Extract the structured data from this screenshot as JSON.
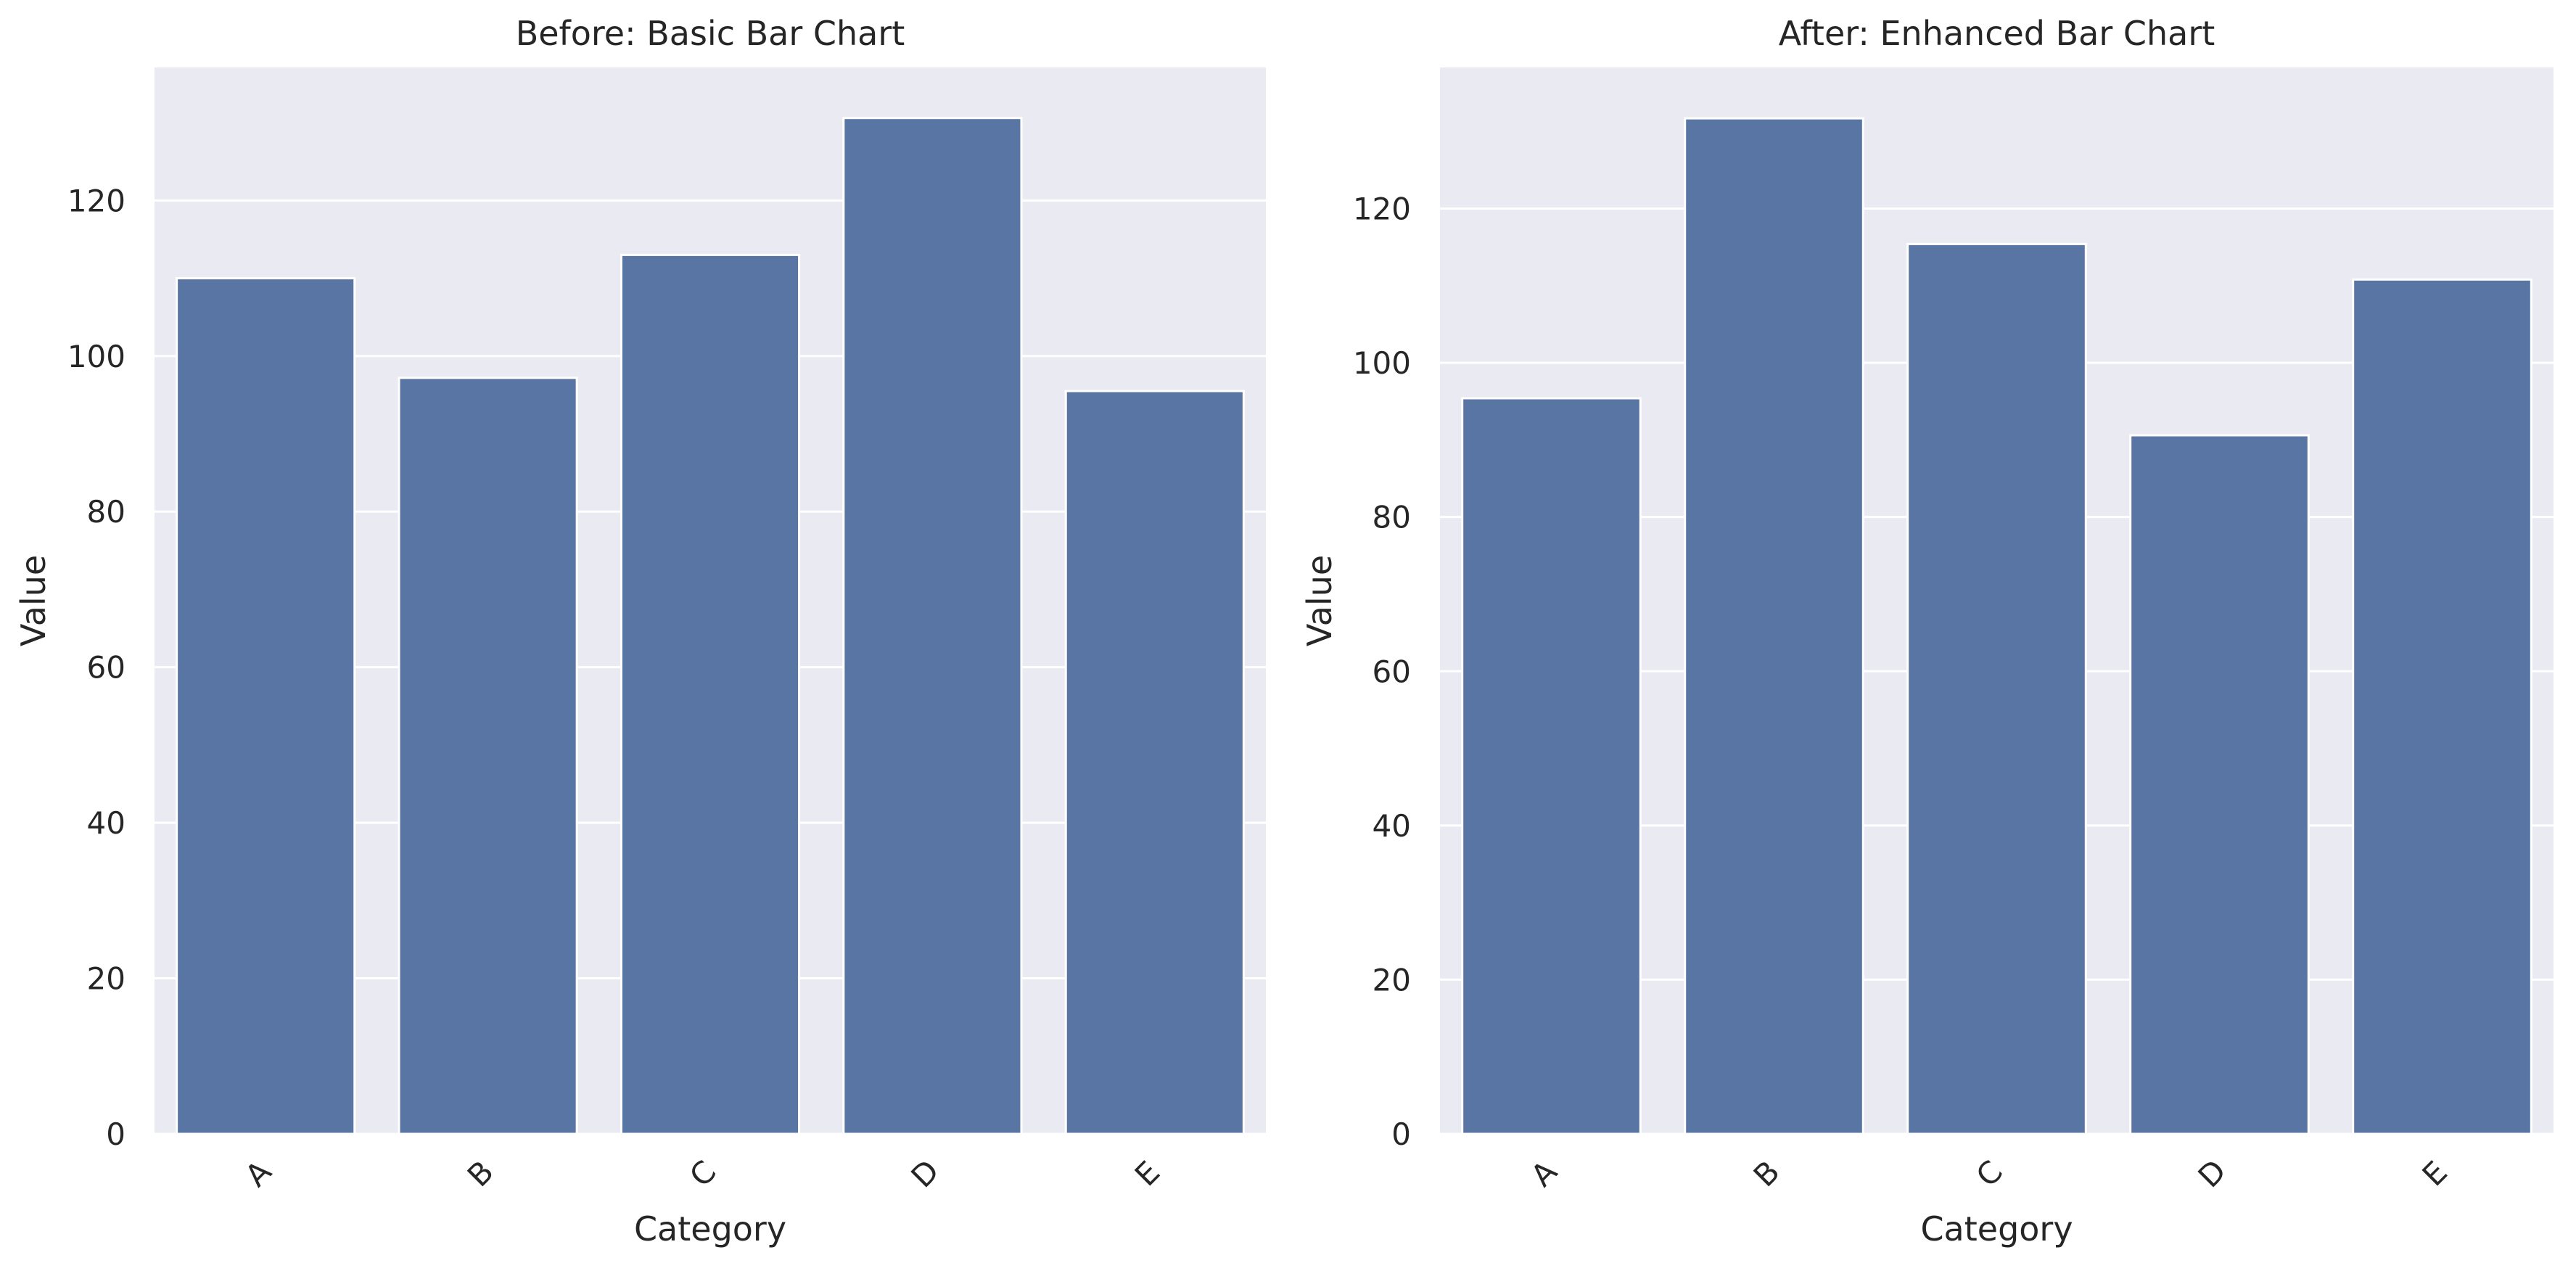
{
  "chart_data": [
    {
      "type": "bar",
      "title": "Before: Basic Bar Chart",
      "xlabel": "Category",
      "ylabel": "Value",
      "categories": [
        "A",
        "B",
        "C",
        "D",
        "E"
      ],
      "values": [
        110,
        97.2,
        113,
        130.6,
        95.5
      ],
      "ylim": [
        0,
        137.1
      ],
      "yticks": [
        0,
        20,
        40,
        60,
        80,
        100,
        120
      ],
      "grid": true,
      "bar_color": "#5975a4",
      "background_color": "#eaeaf2"
    },
    {
      "type": "bar",
      "title": "After: Enhanced Bar Chart",
      "xlabel": "Category",
      "ylabel": "Value",
      "categories": [
        "A",
        "B",
        "C",
        "D",
        "E"
      ],
      "values": [
        95.4,
        131.7,
        115.4,
        90.6,
        110.8
      ],
      "ylim": [
        0,
        138.3
      ],
      "yticks": [
        0,
        20,
        40,
        60,
        80,
        100,
        120
      ],
      "grid": true,
      "bar_color": "#5975a4",
      "background_color": "#eaeaf2"
    }
  ]
}
